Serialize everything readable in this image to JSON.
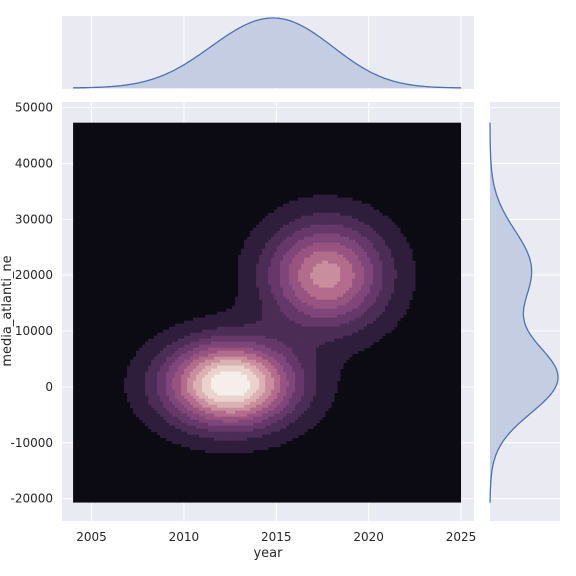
{
  "chart_data": {
    "type": "kde-jointplot",
    "xlabel": "year",
    "ylabel": "media_atlanti_ne",
    "xlim": [
      2003.4,
      2025.7
    ],
    "ylim": [
      -24000,
      51000
    ],
    "x_ticks": [
      2005,
      2010,
      2015,
      2020,
      2025
    ],
    "y_ticks": [
      -20000,
      -10000,
      0,
      10000,
      20000,
      30000,
      40000,
      50000
    ],
    "x_tick_labels": [
      "2005",
      "2010",
      "2015",
      "2020",
      "2025"
    ],
    "y_tick_labels": [
      "-20000",
      "-10000",
      "0",
      "10000",
      "20000",
      "30000",
      "40000",
      "50000"
    ],
    "grid": true,
    "joint_kde": {
      "x_range": [
        2004,
        2025
      ],
      "y_range": [
        -20700,
        47300
      ],
      "components": [
        {
          "mean_x": 2012.5,
          "mean_y": 500,
          "sd_x": 2.4,
          "sd_y": 5200,
          "weight": 0.6
        },
        {
          "mean_x": 2017.7,
          "mean_y": 20000,
          "sd_x": 2.2,
          "sd_y": 6500,
          "weight": 0.4
        }
      ],
      "levels": 10
    },
    "marginal_x": {
      "x_range": [
        2004,
        2025
      ],
      "peak_x": 2014.6
    },
    "marginal_y": {
      "y_range": [
        -20700,
        47300
      ],
      "modes": [
        1500,
        21000
      ]
    },
    "colors": {
      "background": "#eaeaf2",
      "grid": "#ffffff",
      "marginal_fill": "#c5cde3",
      "marginal_line": "#4c72b0",
      "kde_palette": [
        "#0c0b14",
        "#2e1e3c",
        "#4b2d55",
        "#66386a",
        "#7f4679",
        "#975481",
        "#b36c8c",
        "#c98f9e",
        "#dbb1b4",
        "#ead3cf",
        "#f6eeea"
      ]
    }
  }
}
